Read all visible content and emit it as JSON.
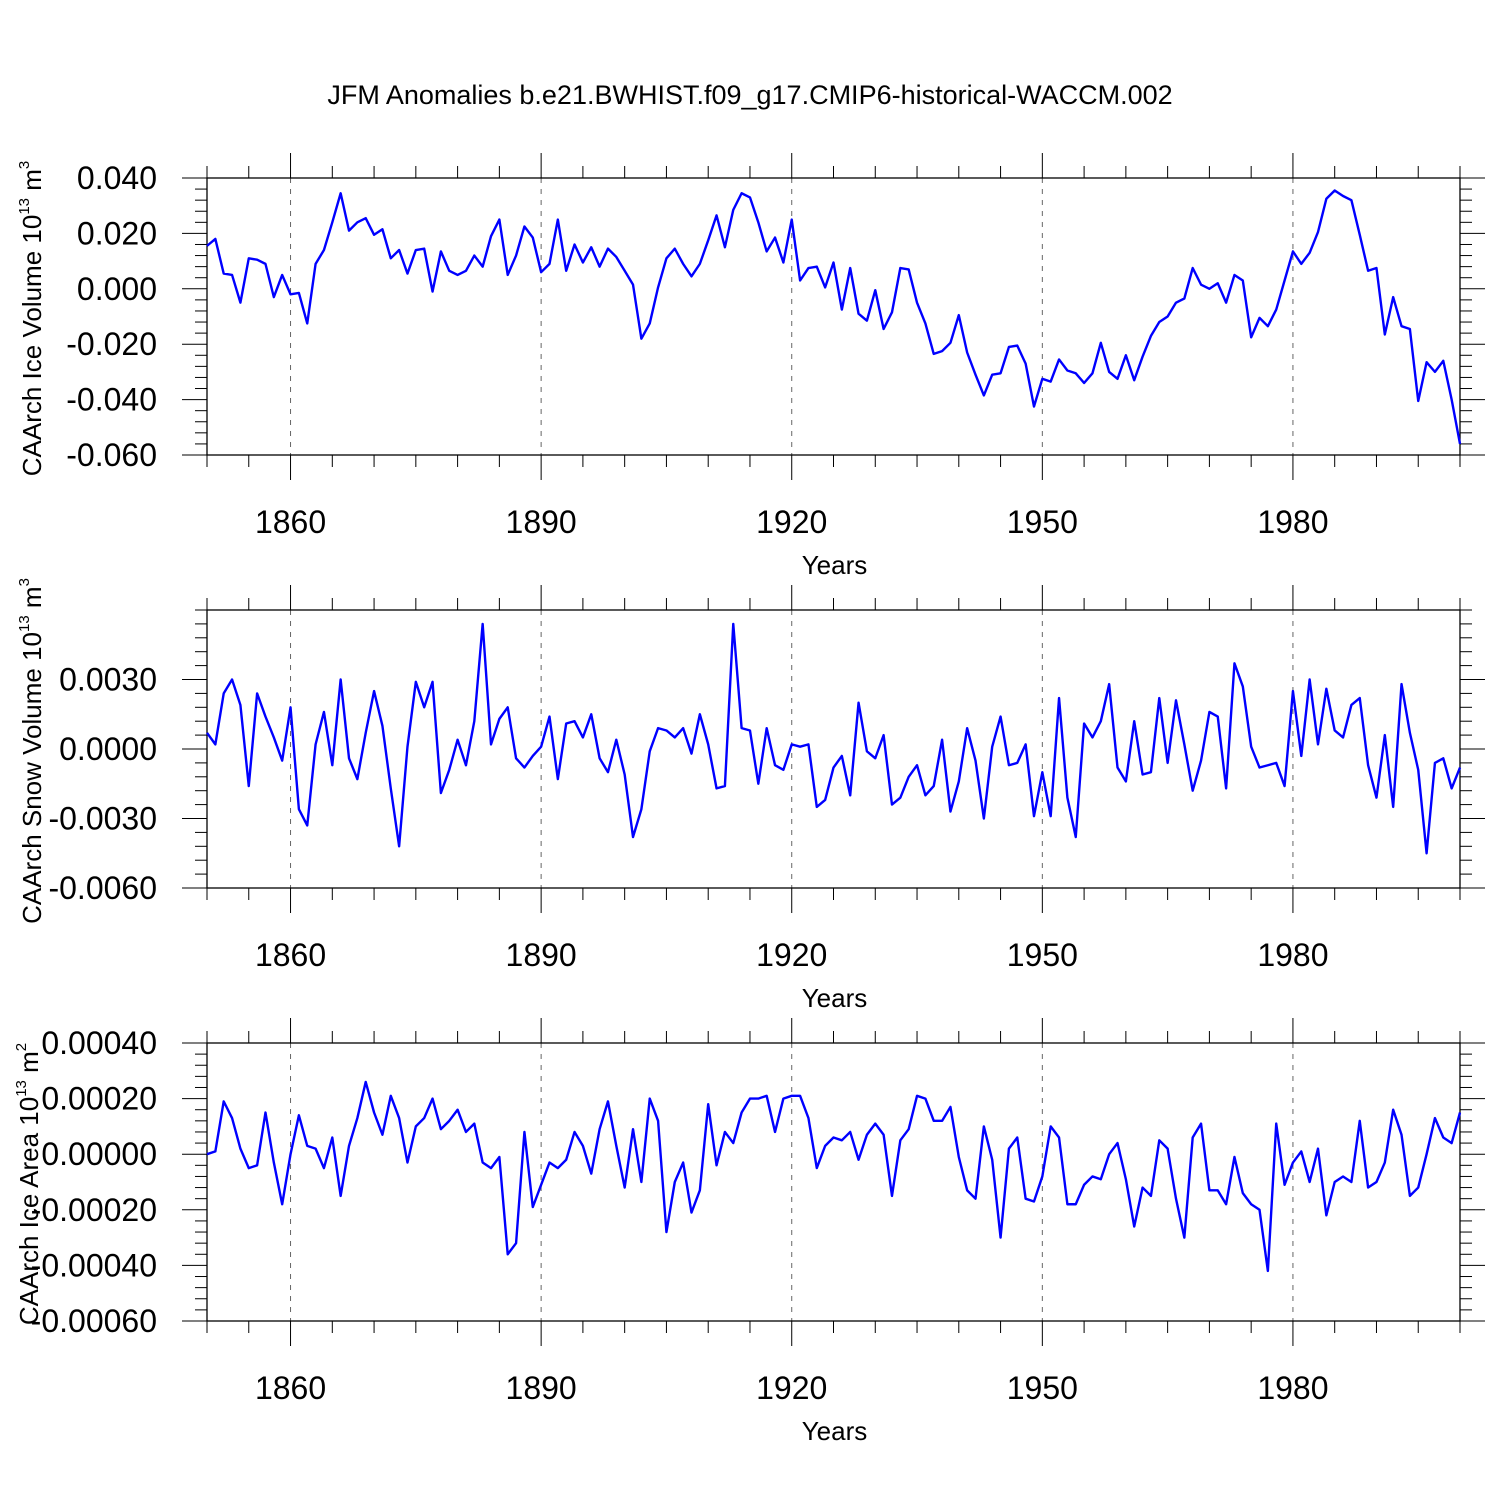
{
  "figure_title": "JFM Anomalies b.e21.BWHIST.f09_g17.CMIP6-historical-WACCM.002",
  "colors": {
    "line": "#0000ff",
    "axis": "#000000",
    "grid": "#666666"
  },
  "chart_data": [
    {
      "type": "line",
      "title": "JFM Anomalies b.e21.BWHIST.f09_g17.CMIP6-historical-WACCM.002",
      "xlabel": "Years",
      "ylabel": "CAArch Ice Volume 10",
      "ylabel_sup": "13",
      "ylabel_unit": " m",
      "ylabel_unit_sup": "3",
      "xlim": [
        1850,
        2000
      ],
      "ylim": [
        -0.06,
        0.04
      ],
      "x_ticks": [
        1860,
        1890,
        1920,
        1950,
        1980
      ],
      "x_tick_labels": [
        "1860",
        "1890",
        "1920",
        "1950",
        "1980"
      ],
      "y_ticks": [
        -0.06,
        -0.04,
        -0.02,
        0.0,
        0.02,
        0.04
      ],
      "y_tick_labels": [
        "-0.060",
        "-0.040",
        "-0.020",
        "0.000",
        "0.020",
        "0.040"
      ],
      "grid": "dashed vertical at major x ticks",
      "x_start": 1850,
      "series": [
        {
          "name": "CAArch Ice Volume",
          "values": [
            0.0155,
            0.018,
            0.0055,
            0.005,
            -0.005,
            0.011,
            0.0105,
            0.009,
            -0.003,
            0.005,
            -0.002,
            -0.0015,
            -0.0125,
            0.009,
            0.014,
            0.024,
            0.0345,
            0.021,
            0.024,
            0.0255,
            0.0195,
            0.0215,
            0.011,
            0.014,
            0.0055,
            0.014,
            0.0145,
            -0.001,
            0.0135,
            0.0065,
            0.005,
            0.0065,
            0.012,
            0.008,
            0.019,
            0.025,
            0.005,
            0.012,
            0.0225,
            0.0185,
            0.006,
            0.009,
            0.025,
            0.0065,
            0.016,
            0.0095,
            0.015,
            0.008,
            0.0145,
            0.0115,
            0.0065,
            0.0015,
            -0.018,
            -0.0125,
            0.0005,
            0.011,
            0.0145,
            0.009,
            0.0045,
            0.009,
            0.0175,
            0.0265,
            0.015,
            0.0285,
            0.0345,
            0.033,
            0.024,
            0.0135,
            0.0185,
            0.0095,
            0.025,
            0.003,
            0.0075,
            0.008,
            0.0005,
            0.0095,
            -0.0075,
            0.0075,
            -0.009,
            -0.0115,
            -0.0005,
            -0.0145,
            -0.0085,
            0.0075,
            0.007,
            -0.005,
            -0.0125,
            -0.0235,
            -0.0225,
            -0.0195,
            -0.0095,
            -0.023,
            -0.031,
            -0.0385,
            -0.031,
            -0.0305,
            -0.021,
            -0.0205,
            -0.027,
            -0.0425,
            -0.0325,
            -0.0335,
            -0.0255,
            -0.0295,
            -0.0305,
            -0.034,
            -0.0305,
            -0.0195,
            -0.03,
            -0.0325,
            -0.024,
            -0.033,
            -0.0245,
            -0.017,
            -0.012,
            -0.01,
            -0.005,
            -0.0035,
            0.0075,
            0.0015,
            0.0,
            0.002,
            -0.005,
            0.005,
            0.003,
            -0.0175,
            -0.0105,
            -0.0135,
            -0.0075,
            0.003,
            0.0135,
            0.009,
            0.013,
            0.0205,
            0.0325,
            0.0355,
            0.0335,
            0.032,
            0.0195,
            0.0065,
            0.0075,
            -0.0165,
            -0.003,
            -0.0135,
            -0.0145,
            -0.0405,
            -0.0265,
            -0.03,
            -0.026,
            -0.04,
            -0.056
          ]
        }
      ]
    },
    {
      "type": "line",
      "title": "",
      "xlabel": "Years",
      "ylabel": "CAArch Snow Volume 10",
      "ylabel_sup": "13",
      "ylabel_unit": " m",
      "ylabel_unit_sup": "3",
      "xlim": [
        1850,
        2000
      ],
      "ylim": [
        -0.006,
        0.006
      ],
      "x_ticks": [
        1860,
        1890,
        1920,
        1950,
        1980
      ],
      "x_tick_labels": [
        "1860",
        "1890",
        "1920",
        "1950",
        "1980"
      ],
      "y_ticks": [
        -0.006,
        -0.003,
        0.0,
        0.003
      ],
      "y_tick_labels": [
        "-0.0060",
        "-0.0030",
        "0.0000",
        "0.0030"
      ],
      "grid": "dashed vertical at major x ticks",
      "x_start": 1850,
      "series": [
        {
          "name": "CAArch Snow Volume",
          "values": [
            0.0007,
            0.0002,
            0.0024,
            0.003,
            0.0019,
            -0.0016,
            0.0024,
            0.0014,
            0.0005,
            -0.0005,
            0.0018,
            -0.0026,
            -0.0033,
            0.0002,
            0.0016,
            -0.0007,
            0.003,
            -0.0004,
            -0.0013,
            0.0007,
            0.0025,
            0.001,
            -0.0017,
            -0.0042,
            0.0001,
            0.0029,
            0.0018,
            0.0029,
            -0.0019,
            -0.0009,
            0.0004,
            -0.0007,
            0.0012,
            0.0054,
            0.0002,
            0.0013,
            0.0018,
            -0.0004,
            -0.0008,
            -0.0003,
            0.0001,
            0.0014,
            -0.0013,
            0.0011,
            0.0012,
            0.0005,
            0.0015,
            -0.0004,
            -0.001,
            0.0004,
            -0.0011,
            -0.0038,
            -0.0026,
            -0.0001,
            0.0009,
            0.0008,
            0.0005,
            0.0009,
            -0.0002,
            0.0015,
            0.0002,
            -0.0017,
            -0.0016,
            0.0054,
            0.0009,
            0.0008,
            -0.0015,
            0.0009,
            -0.0007,
            -0.0009,
            0.0002,
            0.0001,
            0.0002,
            -0.0025,
            -0.0022,
            -0.0008,
            -0.0003,
            -0.002,
            0.002,
            -0.0001,
            -0.0004,
            0.0006,
            -0.0024,
            -0.0021,
            -0.0012,
            -0.0007,
            -0.002,
            -0.0016,
            0.0004,
            -0.0027,
            -0.0014,
            0.0009,
            -0.0005,
            -0.003,
            0.0001,
            0.0014,
            -0.0007,
            -0.0006,
            0.0002,
            -0.0029,
            -0.001,
            -0.0029,
            0.0022,
            -0.0021,
            -0.0038,
            0.0011,
            0.0005,
            0.0012,
            0.0028,
            -0.0008,
            -0.0014,
            0.0012,
            -0.0011,
            -0.001,
            0.0022,
            -0.0006,
            0.0021,
            0.0002,
            -0.0018,
            -0.0005,
            0.0016,
            0.0014,
            -0.0017,
            0.0037,
            0.0027,
            0.0001,
            -0.0008,
            -0.0007,
            -0.0006,
            -0.0016,
            0.0025,
            -0.0003,
            0.003,
            0.0002,
            0.0026,
            0.0008,
            0.0005,
            0.0019,
            0.0022,
            -0.0007,
            -0.0021,
            0.0006,
            -0.0025,
            0.0028,
            0.0007,
            -0.0009,
            -0.0045,
            -0.0006,
            -0.0004,
            -0.0017,
            -0.0008
          ]
        }
      ]
    },
    {
      "type": "line",
      "title": "",
      "xlabel": "Years",
      "ylabel": "CAArch Ice Area 10",
      "ylabel_sup": "13",
      "ylabel_unit": " m",
      "ylabel_unit_sup": "2",
      "xlim": [
        1850,
        2000
      ],
      "ylim": [
        -0.0006,
        0.0004
      ],
      "x_ticks": [
        1860,
        1890,
        1920,
        1950,
        1980
      ],
      "x_tick_labels": [
        "1860",
        "1890",
        "1920",
        "1950",
        "1980"
      ],
      "y_ticks": [
        -0.0006,
        -0.0004,
        -0.0002,
        0.0,
        0.0002,
        0.0004
      ],
      "y_tick_labels": [
        "-0.00060",
        "-0.00040",
        "-0.00020",
        "0.00000",
        "0.00020",
        "0.00040"
      ],
      "grid": "dashed vertical at major x ticks",
      "x_start": 1850,
      "series": [
        {
          "name": "CAArch Ice Area",
          "values": [
            0.0,
            1e-05,
            0.00019,
            0.00013,
            2e-05,
            -5e-05,
            -4e-05,
            0.00015,
            -3e-05,
            -0.00018,
            0.0,
            0.00014,
            3e-05,
            2e-05,
            -5e-05,
            6e-05,
            -0.00015,
            3e-05,
            0.00013,
            0.00026,
            0.00015,
            7e-05,
            0.00021,
            0.00013,
            -3e-05,
            0.0001,
            0.00013,
            0.0002,
            9e-05,
            0.00012,
            0.00016,
            8e-05,
            0.00011,
            -3e-05,
            -5e-05,
            -1e-05,
            -0.00036,
            -0.00032,
            8e-05,
            -0.00019,
            -0.00011,
            -3e-05,
            -5e-05,
            -2e-05,
            8e-05,
            3e-05,
            -7e-05,
            9e-05,
            0.00019,
            3e-05,
            -0.00012,
            9e-05,
            -0.0001,
            0.0002,
            0.00012,
            -0.00028,
            -0.0001,
            -3e-05,
            -0.00021,
            -0.00013,
            0.00018,
            -4e-05,
            8e-05,
            4e-05,
            0.00015,
            0.0002,
            0.0002,
            0.00021,
            8e-05,
            0.0002,
            0.00021,
            0.00021,
            0.00013,
            -5e-05,
            3e-05,
            6e-05,
            5e-05,
            8e-05,
            -2e-05,
            7e-05,
            0.00011,
            7e-05,
            -0.00015,
            5e-05,
            9e-05,
            0.00021,
            0.0002,
            0.00012,
            0.00012,
            0.00017,
            -1e-05,
            -0.00013,
            -0.00016,
            0.0001,
            -2e-05,
            -0.0003,
            2e-05,
            6e-05,
            -0.00016,
            -0.00017,
            -8e-05,
            0.0001,
            6e-05,
            -0.00018,
            -0.00018,
            -0.00011,
            -8e-05,
            -9e-05,
            0.0,
            4e-05,
            -9e-05,
            -0.00026,
            -0.00012,
            -0.00015,
            5e-05,
            2e-05,
            -0.00016,
            -0.0003,
            6e-05,
            0.00011,
            -0.00013,
            -0.00013,
            -0.00018,
            -1e-05,
            -0.00014,
            -0.00018,
            -0.0002,
            -0.00042,
            0.00011,
            -0.00011,
            -3e-05,
            1e-05,
            -0.0001,
            2e-05,
            -0.00022,
            -0.0001,
            -8e-05,
            -0.0001,
            0.00012,
            -0.00012,
            -0.0001,
            -3e-05,
            0.00016,
            7e-05,
            -0.00015,
            -0.00012,
            0.0,
            0.00013,
            6e-05,
            4e-05,
            0.00015
          ]
        }
      ]
    }
  ]
}
